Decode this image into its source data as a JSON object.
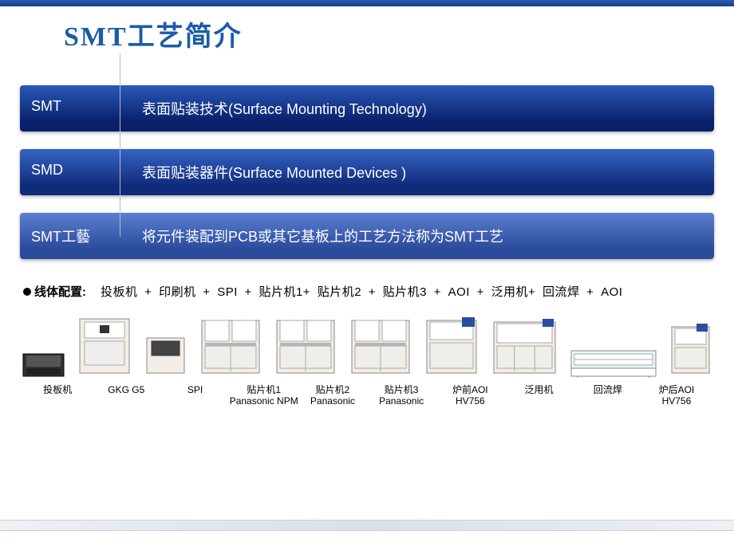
{
  "title": "SMT工艺简介",
  "rows": [
    {
      "label": "SMT",
      "text": "表面贴装技术(Surface Mounting Technology)"
    },
    {
      "label": "SMD",
      "text": "表面贴装器件(Surface Mounted Devices )"
    },
    {
      "label": "SMT工藝",
      "text": "将元件装配到PCB或其它基板上的工艺方法称为SMT工艺"
    }
  ],
  "lineConfig": {
    "label": "线体配置:",
    "text": "投板机 +  印刷机  +  SPI  +  贴片机1+  贴片机2  +  贴片机3 +  AOI +  泛用机+ 回流焊 + AOI"
  },
  "machines": [
    {
      "name": "投板机",
      "sub": "",
      "w": 55,
      "h": 55,
      "type": "loader"
    },
    {
      "name": "GKG G5",
      "sub": "",
      "w": 70,
      "h": 80,
      "type": "printer"
    },
    {
      "name": "SPI",
      "sub": "",
      "w": 55,
      "h": 60,
      "type": "spi"
    },
    {
      "name": "贴片机1",
      "sub": "Panasonic NPM",
      "w": 80,
      "h": 80,
      "type": "mounter"
    },
    {
      "name": "贴片机2",
      "sub": "Panasonic",
      "w": 80,
      "h": 80,
      "type": "mounter"
    },
    {
      "name": "贴片机3",
      "sub": "Panasonic",
      "w": 80,
      "h": 80,
      "type": "mounter"
    },
    {
      "name": "炉前AOI",
      "sub": "HV756",
      "w": 70,
      "h": 80,
      "type": "aoi"
    },
    {
      "name": "泛用机",
      "sub": "",
      "w": 85,
      "h": 78,
      "type": "general"
    },
    {
      "name": "回流焊",
      "sub": "",
      "w": 110,
      "h": 50,
      "type": "reflow"
    },
    {
      "name": "炉后AOI",
      "sub": "HV756",
      "w": 55,
      "h": 72,
      "type": "aoi2"
    }
  ],
  "colors": {
    "title": "#1a5ca8",
    "headerTop": "#2a5cbf",
    "row1a": "#2959b8",
    "row1b": "#0a1f6a",
    "row2a": "#3565c5",
    "row2b": "#102a7a",
    "row3a": "#5a7fd0",
    "row3b": "#2a4a9a",
    "machineLight": "#f3ede5",
    "machineGray": "#b5b5b5",
    "machineBlue": "#2a4fa0",
    "reflowBg": "#e8f4f8",
    "dark": "#333333"
  }
}
